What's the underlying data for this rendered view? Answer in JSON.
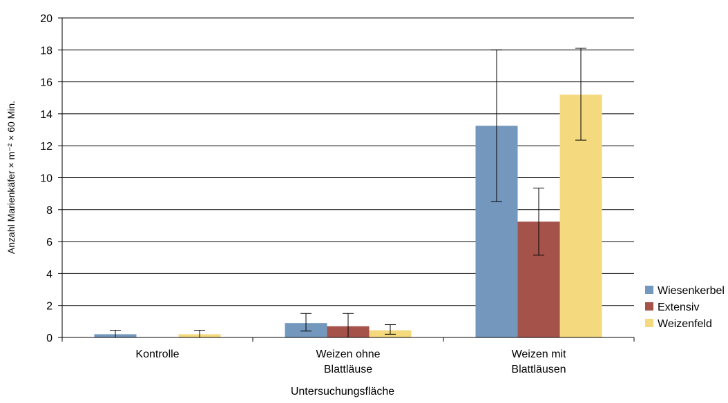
{
  "chart_data": {
    "type": "bar",
    "title": "",
    "xlabel": "Untersuchungsfläche",
    "ylabel": "Anzahl Marienkäfer × m⁻² × 60 Min.",
    "ylim": [
      0,
      20
    ],
    "yticks": [
      0,
      2,
      4,
      6,
      8,
      10,
      12,
      14,
      16,
      18,
      20
    ],
    "grid": true,
    "legend_position": "right",
    "categories": [
      [
        "Kontrolle"
      ],
      [
        "Weizen ohne",
        "Blattläuse"
      ],
      [
        "Weizen mit",
        "Blattläusen"
      ]
    ],
    "series": [
      {
        "name": "Wiesenkerbel",
        "color": "#7397bd",
        "values": [
          0.2,
          0.9,
          13.25
        ],
        "error_low": [
          0.0,
          0.4,
          8.5
        ],
        "error_high": [
          0.45,
          1.5,
          18.0
        ]
      },
      {
        "name": "Extensiv",
        "color": "#a5524b",
        "values": [
          0.0,
          0.7,
          7.25
        ],
        "error_low": [
          0.0,
          0.0,
          5.15
        ],
        "error_high": [
          0.0,
          1.5,
          9.35
        ]
      },
      {
        "name": "Weizenfeld",
        "color": "#f5d97e",
        "values": [
          0.2,
          0.45,
          15.2
        ],
        "error_low": [
          0.0,
          0.2,
          12.35
        ],
        "error_high": [
          0.45,
          0.8,
          18.1
        ]
      }
    ]
  }
}
